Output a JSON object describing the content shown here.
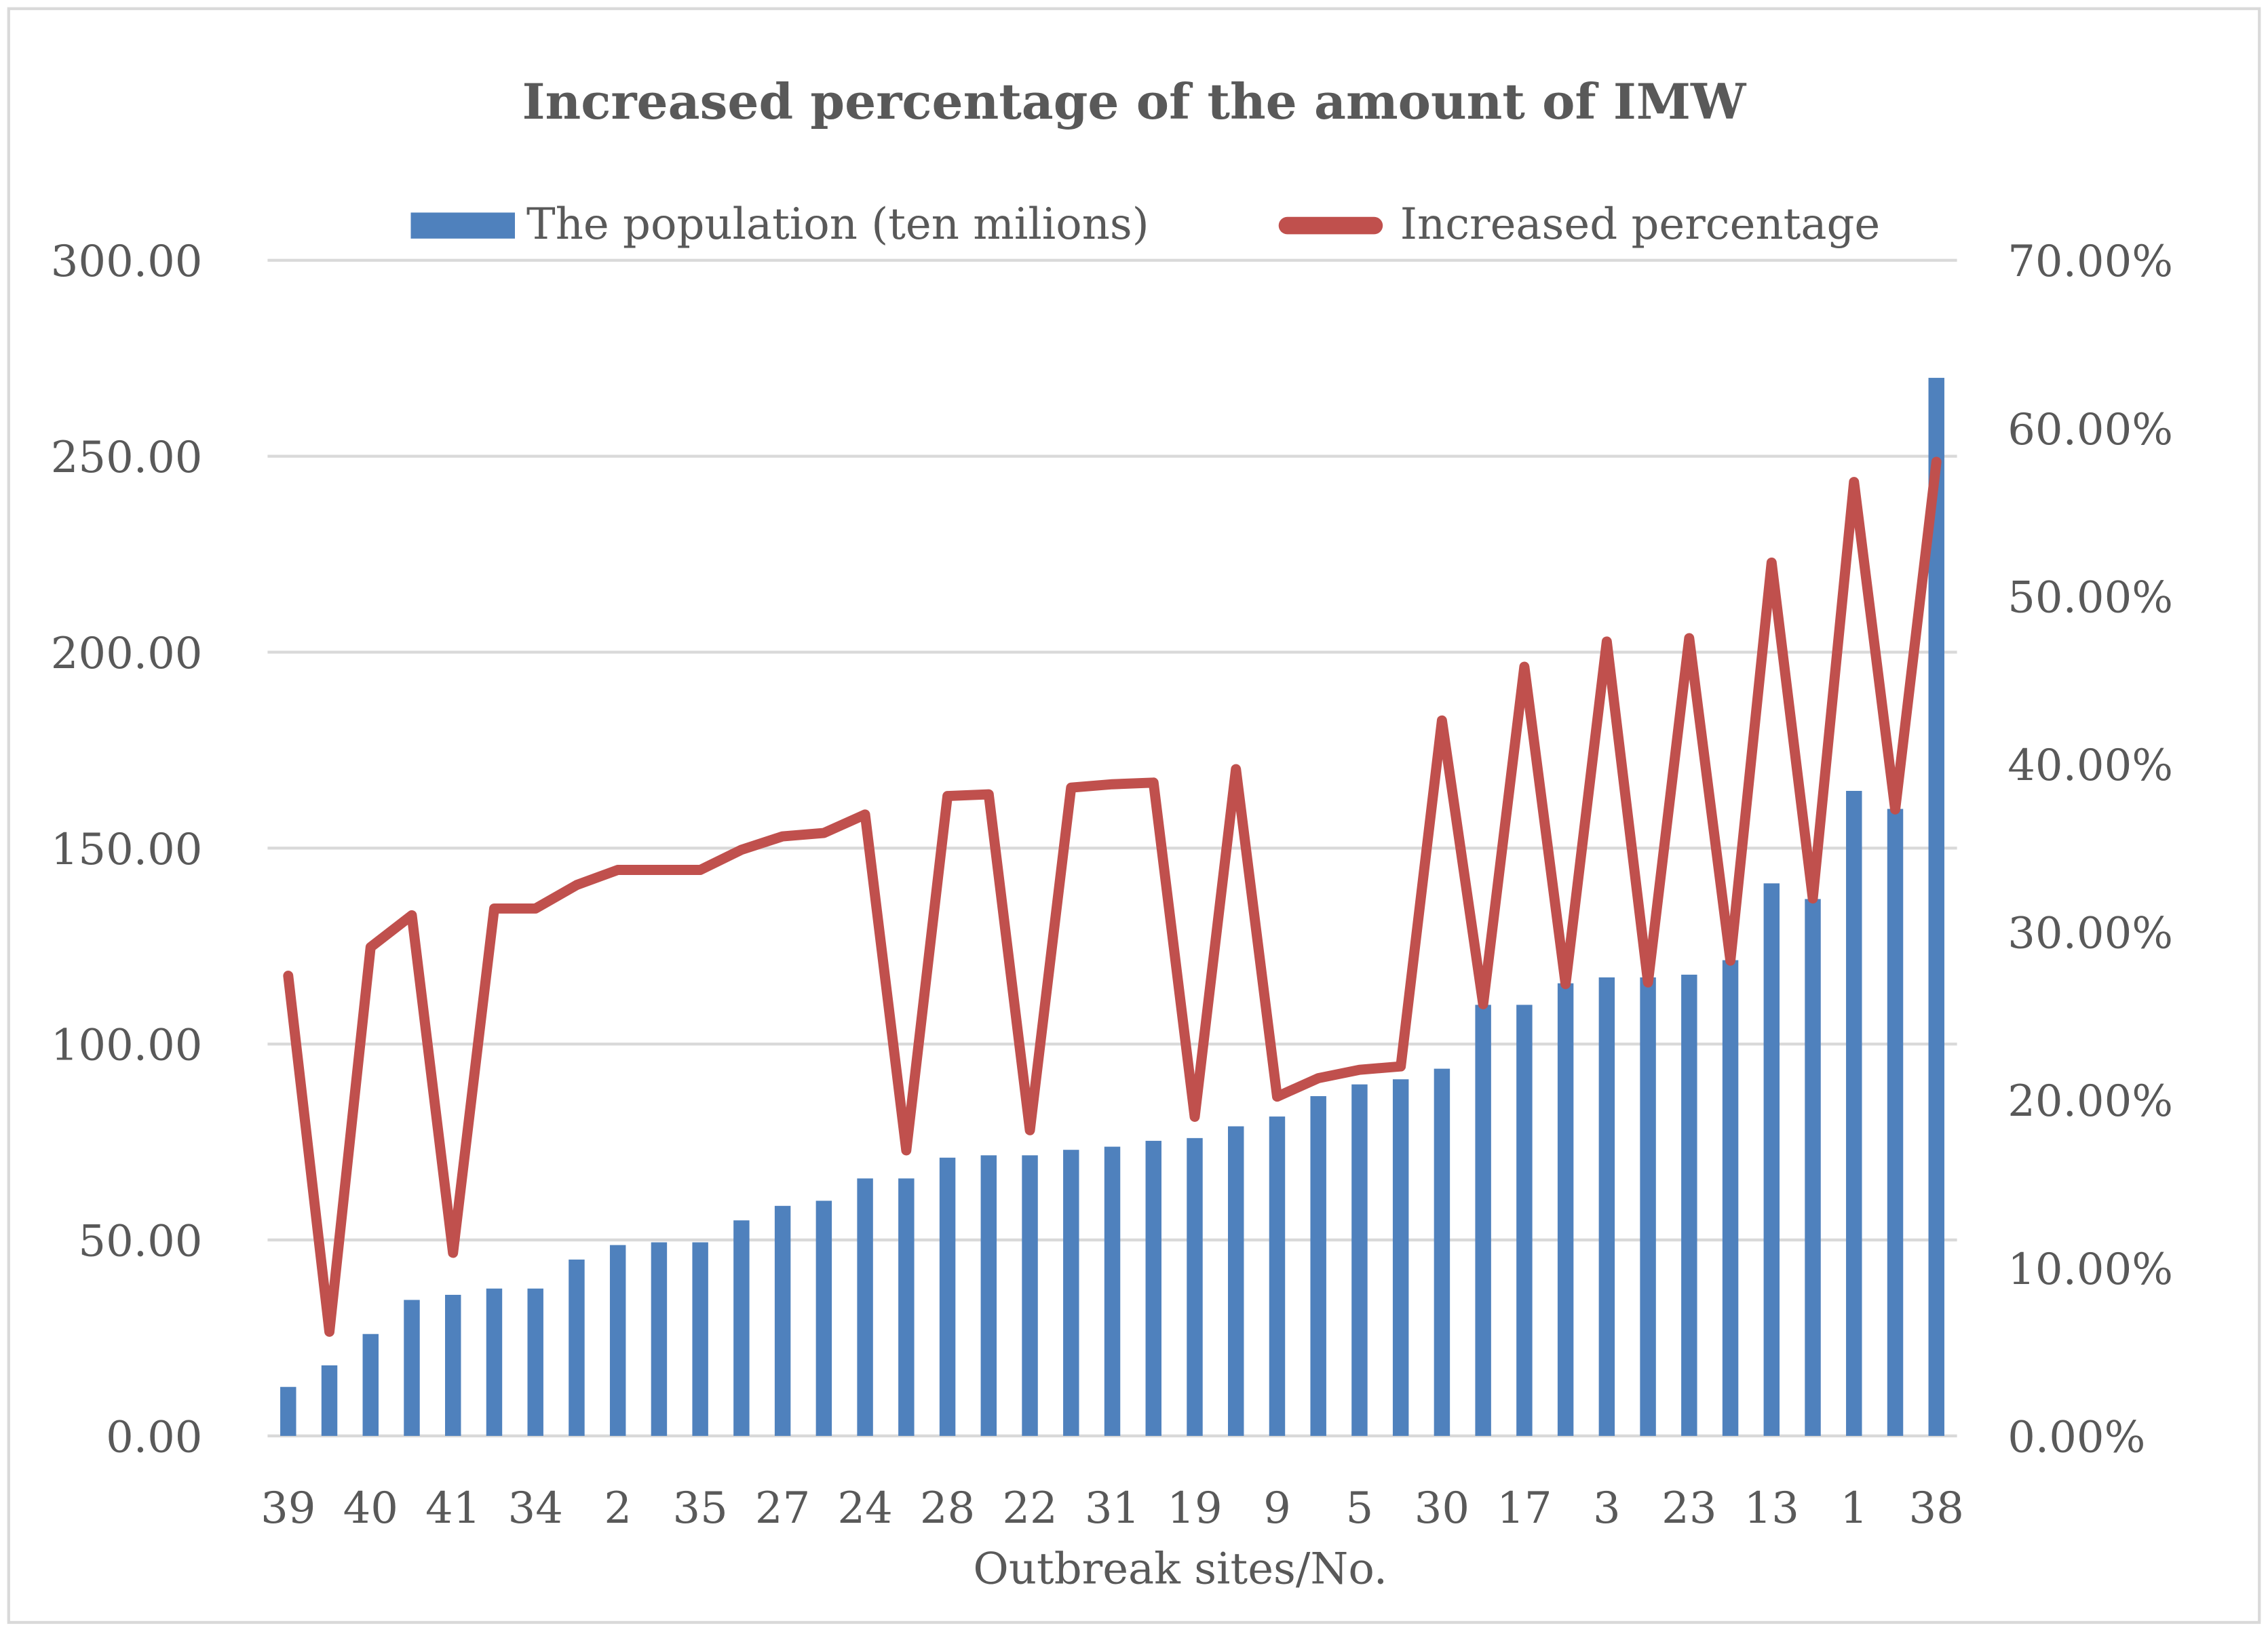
{
  "chart_data": {
    "type": "bar+line",
    "title": "Increased percentage of the amount of IMW",
    "xlabel": "Outbreak sites/No.",
    "ylabel": "",
    "y2label": "",
    "categories": [
      "39",
      "",
      "40",
      "",
      "41",
      "",
      "34",
      "",
      "2",
      "",
      "35",
      "",
      "27",
      "",
      "24",
      "",
      "28",
      "",
      "22",
      "",
      "31",
      "",
      "19",
      "",
      "9",
      "",
      "5",
      "",
      "30",
      "",
      "17",
      "",
      "3",
      "",
      "23",
      "",
      "13",
      "",
      "1",
      "",
      "38"
    ],
    "ylim": [
      0,
      300
    ],
    "y2lim": [
      0,
      70
    ],
    "yticks": [
      "0.00",
      "50.00",
      "100.00",
      "150.00",
      "200.00",
      "250.00",
      "300.00"
    ],
    "y2ticks": [
      "0.00%",
      "10.00%",
      "20.00%",
      "30.00%",
      "40.00%",
      "50.00%",
      "60.00%",
      "70.00%"
    ],
    "grid": true,
    "legend_position": "top",
    "series": [
      {
        "name": "The population (ten milions)",
        "type": "bar",
        "axis": "left",
        "color": "#4F81BD",
        "values": [
          12.5,
          18,
          26,
          34.7,
          36,
          37.6,
          37.6,
          45,
          48.7,
          49.4,
          49.4,
          55,
          58.7,
          60,
          65.7,
          65.7,
          71,
          71.6,
          71.6,
          73,
          73.8,
          75.3,
          76,
          79,
          81.5,
          86.7,
          89.7,
          91,
          93.7,
          110,
          110,
          115.5,
          117,
          117,
          117.7,
          121.4,
          141,
          137,
          164.6,
          160,
          270
        ]
      },
      {
        "name": "Increased percentage",
        "type": "line",
        "axis": "right",
        "unit": "%",
        "color": "#C0504D",
        "values": [
          27.4,
          6.2,
          29.1,
          31,
          10.9,
          31.4,
          31.4,
          32.8,
          33.7,
          33.7,
          33.7,
          34.9,
          35.7,
          35.9,
          37,
          17,
          38.1,
          38.2,
          18.2,
          38.6,
          38.8,
          38.9,
          19,
          39.7,
          20.2,
          21.3,
          21.8,
          22,
          42.6,
          25.7,
          45.8,
          26.9,
          47.3,
          27,
          47.5,
          28.3,
          52,
          32,
          56.8,
          37.3,
          58
        ]
      }
    ]
  }
}
